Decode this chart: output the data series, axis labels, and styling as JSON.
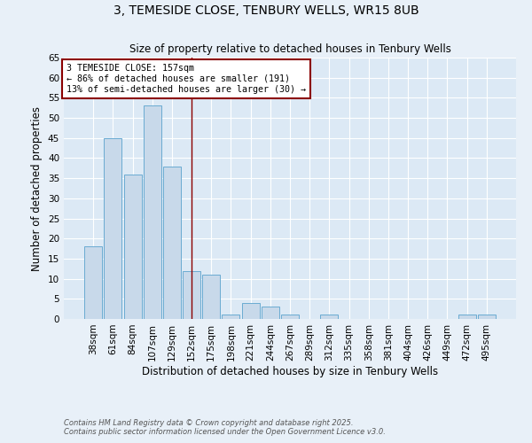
{
  "title_line1": "3, TEMESIDE CLOSE, TENBURY WELLS, WR15 8UB",
  "title_line2": "Size of property relative to detached houses in Tenbury Wells",
  "xlabel": "Distribution of detached houses by size in Tenbury Wells",
  "ylabel": "Number of detached properties",
  "bar_labels": [
    "38sqm",
    "61sqm",
    "84sqm",
    "107sqm",
    "129sqm",
    "152sqm",
    "175sqm",
    "198sqm",
    "221sqm",
    "244sqm",
    "267sqm",
    "289sqm",
    "312sqm",
    "335sqm",
    "358sqm",
    "381sqm",
    "404sqm",
    "426sqm",
    "449sqm",
    "472sqm",
    "495sqm"
  ],
  "bar_values": [
    18,
    45,
    36,
    53,
    38,
    12,
    11,
    1,
    4,
    3,
    1,
    0,
    1,
    0,
    0,
    0,
    0,
    0,
    0,
    1,
    1
  ],
  "bar_color": "#c8d9ea",
  "bar_edge_color": "#6aabd2",
  "vline_x_index": 5,
  "vline_color": "#8b0000",
  "ylim": [
    0,
    65
  ],
  "yticks": [
    0,
    5,
    10,
    15,
    20,
    25,
    30,
    35,
    40,
    45,
    50,
    55,
    60,
    65
  ],
  "annotation_text": "3 TEMESIDE CLOSE: 157sqm\n← 86% of detached houses are smaller (191)\n13% of semi-detached houses are larger (30) →",
  "annotation_box_edgecolor": "#8b0000",
  "annotation_box_facecolor": "white",
  "footnote_line1": "Contains HM Land Registry data © Crown copyright and database right 2025.",
  "footnote_line2": "Contains public sector information licensed under the Open Government Licence v3.0.",
  "plot_bg_color": "#dce9f5",
  "fig_bg_color": "#e8f0f8",
  "title1_fontsize": 10,
  "title2_fontsize": 8.5,
  "xlabel_fontsize": 8.5,
  "ylabel_fontsize": 8.5,
  "tick_fontsize": 7.5,
  "annotation_fontsize": 7.2
}
